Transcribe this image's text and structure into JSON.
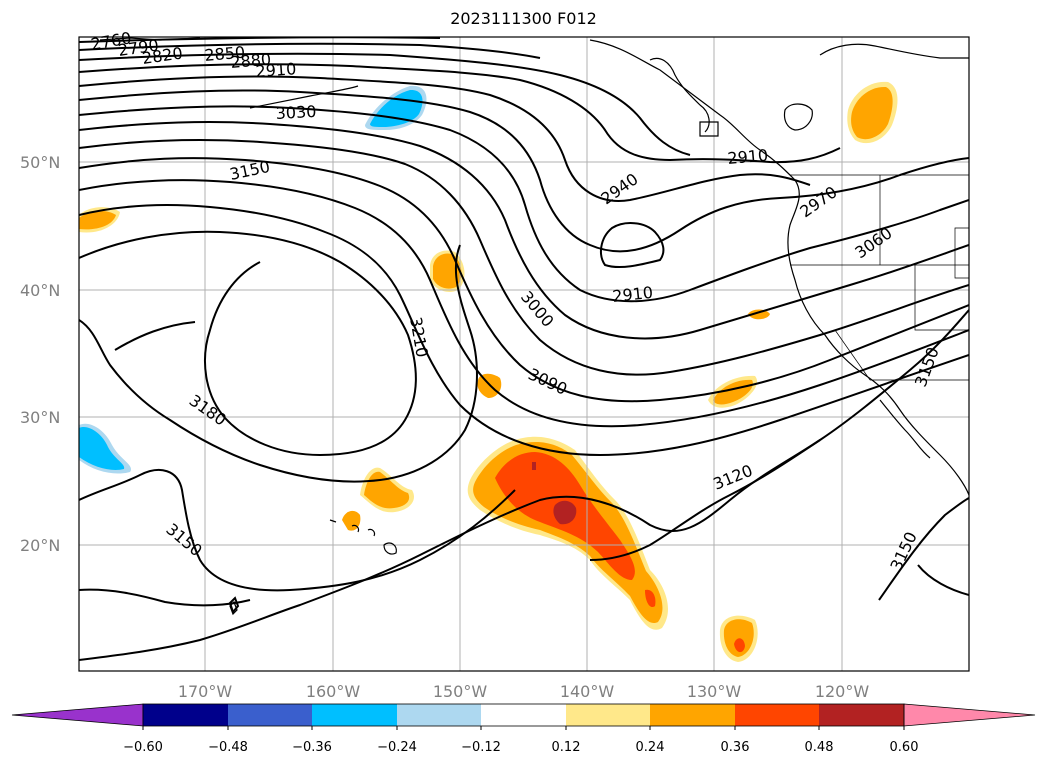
{
  "title": "2023111300 F012",
  "map": {
    "lat_labels": [
      "50°N",
      "40°N",
      "30°N",
      "20°N"
    ],
    "lon_labels": [
      "170°W",
      "160°W",
      "150°W",
      "140°W",
      "130°W",
      "120°W"
    ],
    "contour_labels": [
      "2760",
      "2790",
      "2820",
      "2850",
      "2880",
      "2910",
      "3030",
      "3150",
      "2940",
      "2910",
      "3000",
      "3090",
      "3210",
      "3180",
      "3150",
      "3120",
      "3150",
      "2910",
      "2970",
      "3060",
      "3150"
    ],
    "colors": {
      "grid": "#b0b0b0",
      "contour": "#000000",
      "shade_024": "#ffa500",
      "shade_036": "#ff4500",
      "shade_048": "#b22222",
      "shade_012": "#ffe88a",
      "neg_024": "#00bfff",
      "neg_012": "#add8f0"
    }
  },
  "colorbar": {
    "ticks": [
      "−0.60",
      "−0.48",
      "−0.36",
      "−0.24",
      "−0.12",
      "0.12",
      "0.24",
      "0.36",
      "0.48",
      "0.60"
    ],
    "colors": [
      "#9932cc",
      "#00008b",
      "#3a5fcd",
      "#00bfff",
      "#add8f0",
      "#ffffff",
      "#ffe88a",
      "#ffa500",
      "#ff4500",
      "#b22222",
      "#ff88aa"
    ]
  }
}
